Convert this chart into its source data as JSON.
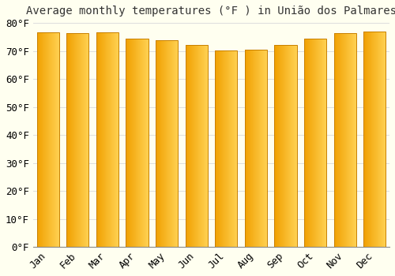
{
  "title": "Average monthly temperatures (°F ) in União dos Palmares",
  "months": [
    "Jan",
    "Feb",
    "Mar",
    "Apr",
    "May",
    "Jun",
    "Jul",
    "Aug",
    "Sep",
    "Oct",
    "Nov",
    "Dec"
  ],
  "values": [
    76.5,
    76.3,
    76.7,
    74.5,
    73.8,
    72.0,
    70.2,
    70.3,
    72.0,
    74.5,
    76.3,
    77.0
  ],
  "ylim": [
    0,
    80
  ],
  "yticks": [
    0,
    10,
    20,
    30,
    40,
    50,
    60,
    70,
    80
  ],
  "ytick_labels": [
    "0°F",
    "10°F",
    "20°F",
    "30°F",
    "40°F",
    "50°F",
    "60°F",
    "70°F",
    "80°F"
  ],
  "bar_color_left": "#F0A000",
  "bar_color_right": "#FFD050",
  "bar_edge_color": "#C88000",
  "background_color": "#FFFFF0",
  "grid_color": "#DDDDDD",
  "title_fontsize": 10,
  "tick_fontsize": 9,
  "bar_width": 0.75
}
